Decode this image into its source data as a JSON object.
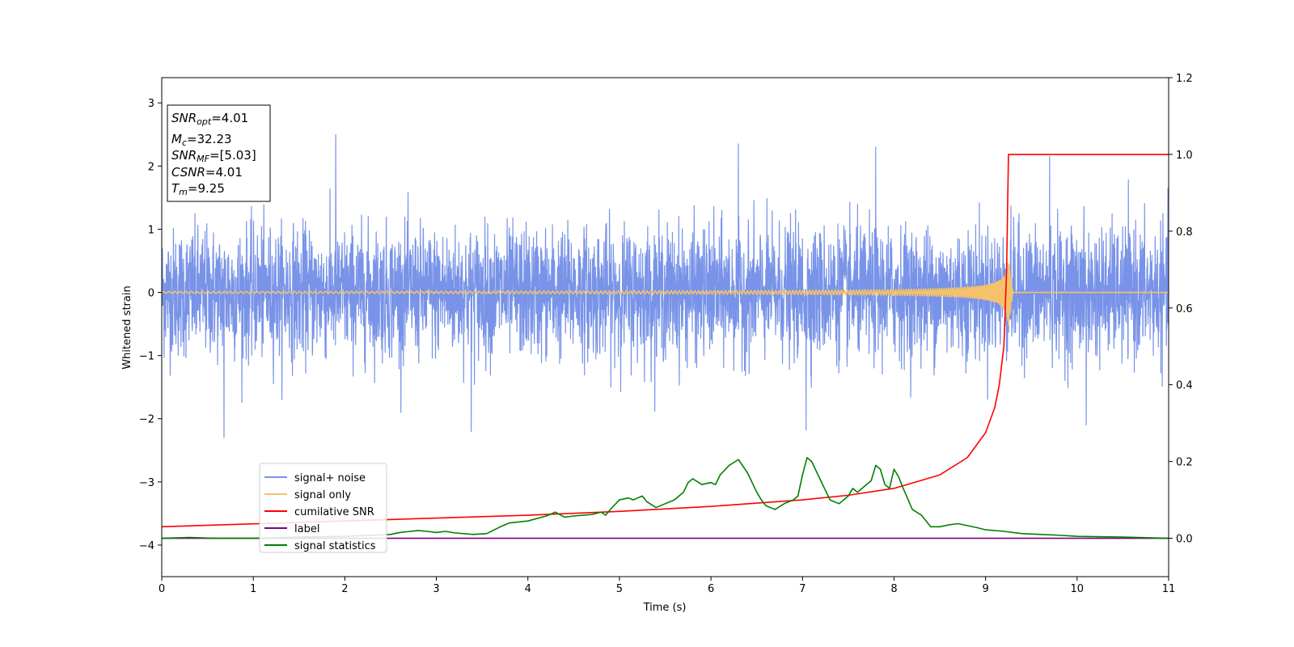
{
  "chart_data": {
    "type": "line",
    "xlabel": "Time (s)",
    "ylabel": "Whitened strain",
    "xlim": [
      0,
      11
    ],
    "ylim_left": [
      -4.5,
      3.4
    ],
    "ylim_right": [
      -0.1,
      1.2
    ],
    "x_ticks": [
      0,
      1,
      2,
      3,
      4,
      5,
      6,
      7,
      8,
      9,
      10,
      11
    ],
    "y_ticks_left": [
      -4,
      -3,
      -2,
      -1,
      0,
      1,
      2,
      3
    ],
    "y_ticks_right": [
      0.0,
      0.2,
      0.4,
      0.6,
      0.8,
      1.0,
      1.2
    ],
    "grid": false,
    "legend_placement": "lower-left",
    "annotation": [
      {
        "name": "SNR",
        "sub": "opt",
        "value": "=4.01"
      },
      {
        "name": "M",
        "sub": "c",
        "value": "=32.23"
      },
      {
        "name": "SNR",
        "sub": "MF",
        "value": "=[5.03]"
      },
      {
        "name": "CSNR",
        "sub": "",
        "value": "=4.01"
      },
      {
        "name": "T",
        "sub": "m",
        "value": "=9.25"
      }
    ],
    "series": [
      {
        "name": "signal+ noise",
        "color": "#7893e8",
        "axis": "left",
        "style": "noise",
        "amplitude": 1.0,
        "peaks": [
          {
            "x": 1.9,
            "y": 2.5
          },
          {
            "x": 6.3,
            "y": 2.35
          },
          {
            "x": 7.8,
            "y": 2.3
          },
          {
            "x": 9.7,
            "y": 2.15
          },
          {
            "x": 0.68,
            "y": -2.3
          },
          {
            "x": 3.38,
            "y": -2.2
          },
          {
            "x": 7.04,
            "y": -2.18
          },
          {
            "x": 10.1,
            "y": -2.1
          }
        ]
      },
      {
        "name": "signal only",
        "color": "#f5c26b",
        "axis": "left",
        "style": "chirp",
        "merger_time": 9.25,
        "peak_amplitude": 0.55
      },
      {
        "name": "cumilative SNR",
        "color": "#ff0000",
        "axis": "right",
        "x": [
          0,
          2,
          4,
          5,
          6,
          7,
          7.5,
          8,
          8.5,
          8.8,
          9.0,
          9.1,
          9.15,
          9.2,
          9.23,
          9.25,
          9.27,
          11
        ],
        "y": [
          0.03,
          0.045,
          0.06,
          0.07,
          0.083,
          0.1,
          0.112,
          0.13,
          0.165,
          0.21,
          0.275,
          0.34,
          0.4,
          0.5,
          0.7,
          1.0,
          1.0,
          1.0
        ]
      },
      {
        "name": "label",
        "color": "#800080",
        "axis": "right",
        "x": [
          0,
          11
        ],
        "y": [
          0.0,
          0.0
        ]
      },
      {
        "name": "signal statistics",
        "color": "#008000",
        "axis": "right",
        "x": [
          0,
          0.3,
          0.6,
          1.0,
          1.5,
          2.0,
          2.5,
          2.6,
          2.8,
          2.9,
          3.0,
          3.1,
          3.2,
          3.4,
          3.55,
          3.7,
          3.8,
          4.0,
          4.2,
          4.3,
          4.4,
          4.5,
          4.6,
          4.7,
          4.75,
          4.8,
          4.85,
          4.9,
          5.0,
          5.1,
          5.15,
          5.2,
          5.25,
          5.3,
          5.4,
          5.5,
          5.6,
          5.7,
          5.75,
          5.8,
          5.9,
          6.0,
          6.05,
          6.1,
          6.2,
          6.3,
          6.4,
          6.5,
          6.55,
          6.6,
          6.7,
          6.8,
          6.9,
          6.95,
          7.0,
          7.05,
          7.1,
          7.2,
          7.3,
          7.4,
          7.5,
          7.55,
          7.6,
          7.7,
          7.75,
          7.8,
          7.85,
          7.9,
          7.95,
          8.0,
          8.05,
          8.1,
          8.2,
          8.3,
          8.4,
          8.5,
          8.6,
          8.7,
          8.8,
          8.9,
          9.0,
          9.2,
          9.4,
          9.6,
          9.8,
          10.0,
          10.5,
          11.0
        ],
        "y": [
          0.0,
          0.002,
          0.0,
          0.0,
          0.003,
          0.005,
          0.01,
          0.015,
          0.02,
          0.018,
          0.015,
          0.018,
          0.014,
          0.01,
          0.012,
          0.03,
          0.04,
          0.045,
          0.058,
          0.068,
          0.055,
          0.058,
          0.06,
          0.062,
          0.065,
          0.068,
          0.06,
          0.075,
          0.1,
          0.105,
          0.1,
          0.105,
          0.11,
          0.095,
          0.08,
          0.09,
          0.1,
          0.12,
          0.145,
          0.155,
          0.14,
          0.145,
          0.14,
          0.165,
          0.19,
          0.205,
          0.17,
          0.12,
          0.1,
          0.085,
          0.075,
          0.09,
          0.1,
          0.11,
          0.165,
          0.21,
          0.2,
          0.15,
          0.1,
          0.09,
          0.11,
          0.13,
          0.12,
          0.14,
          0.15,
          0.19,
          0.18,
          0.14,
          0.13,
          0.18,
          0.16,
          0.13,
          0.075,
          0.06,
          0.03,
          0.03,
          0.035,
          0.038,
          0.033,
          0.028,
          0.022,
          0.018,
          0.012,
          0.01,
          0.008,
          0.005,
          0.003,
          0.0
        ]
      }
    ]
  }
}
